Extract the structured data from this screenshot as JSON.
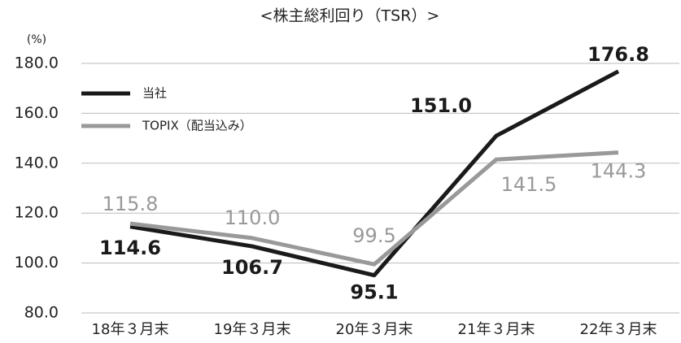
{
  "chart_data": {
    "type": "line",
    "title": "<株主総利回り（TSR）>",
    "y_unit": "(%)",
    "categories": [
      "18年３月末",
      "19年３月末",
      "20年３月末",
      "21年３月末",
      "22年３月末"
    ],
    "series": [
      {
        "name": "当社",
        "color": "#1a1a1a",
        "values": [
          114.6,
          106.7,
          95.1,
          151.0,
          176.8
        ],
        "value_labels": [
          "114.6",
          "106.7",
          "95.1",
          "151.0",
          "176.8"
        ]
      },
      {
        "name": "TOPIX（配当込み）",
        "color": "#999999",
        "values": [
          115.8,
          110.0,
          99.5,
          141.5,
          144.3
        ],
        "value_labels": [
          "115.8",
          "110.0",
          "99.5",
          "141.5",
          "144.3"
        ]
      }
    ],
    "ylim": [
      80,
      180
    ],
    "yticks": [
      {
        "value": 80,
        "label": "80.0"
      },
      {
        "value": 100,
        "label": "100.0"
      },
      {
        "value": 120,
        "label": "120.0"
      },
      {
        "value": 140,
        "label": "140.0"
      },
      {
        "value": 160,
        "label": "160.0"
      },
      {
        "value": 180,
        "label": "180.0"
      }
    ],
    "grid": true,
    "legend": "upper left"
  }
}
